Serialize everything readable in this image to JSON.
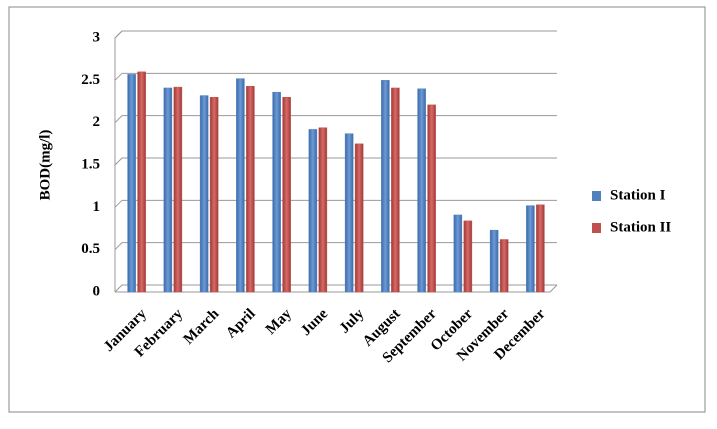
{
  "chart_data": {
    "type": "bar",
    "y_label": "BOD(mg/l)",
    "categories": [
      "January",
      "February",
      "March",
      "April",
      "May",
      "June",
      "July",
      "August",
      "September",
      "October",
      "November",
      "December"
    ],
    "series": [
      {
        "name": "Station I",
        "color": "#4f81bd",
        "values": [
          2.57,
          2.41,
          2.32,
          2.52,
          2.36,
          1.92,
          1.87,
          2.5,
          2.4,
          0.91,
          0.73,
          1.02
        ]
      },
      {
        "name": "Station II",
        "color": "#c0504d",
        "values": [
          2.6,
          2.42,
          2.3,
          2.43,
          2.3,
          1.94,
          1.75,
          2.41,
          2.21,
          0.84,
          0.62,
          1.03
        ]
      }
    ],
    "ylim": [
      0,
      3
    ],
    "yticks": [
      0,
      0.5,
      1,
      1.5,
      2,
      2.5,
      3
    ],
    "grid": true,
    "legend": "right"
  }
}
